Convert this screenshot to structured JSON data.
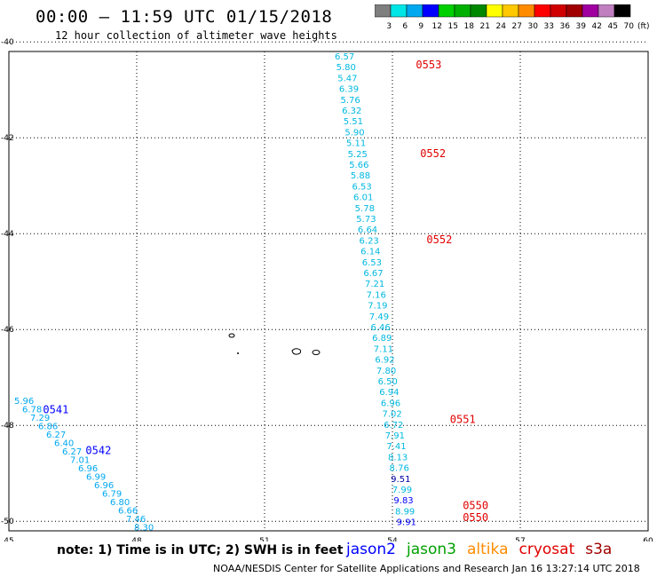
{
  "header": {
    "title": "00:00 – 11:59 UTC 01/15/2018",
    "subtitle": "12 hour collection of altimeter wave heights"
  },
  "colorbar": {
    "unit": "(ft)",
    "labels": [
      "3",
      "6",
      "9",
      "12",
      "15",
      "18",
      "21",
      "24",
      "27",
      "30",
      "33",
      "36",
      "39",
      "42",
      "45",
      "70"
    ],
    "colors": [
      "#7f7f7f",
      "#00e5e5",
      "#00a8f0",
      "#0000ff",
      "#00d000",
      "#00b000",
      "#008800",
      "#ffff00",
      "#ffc800",
      "#ff8c00",
      "#ff0000",
      "#d00000",
      "#a00000",
      "#a000a0",
      "#c080c0",
      "#000000"
    ]
  },
  "map_axes": {
    "lon_ticks": [
      45,
      48,
      51,
      54,
      57,
      60
    ],
    "lat_ticks": [
      -40,
      -42,
      -44,
      -46,
      -48,
      -50
    ],
    "lon_range": [
      45,
      60
    ],
    "lat_range": [
      -40.2,
      -50.2
    ],
    "grid": true
  },
  "tracks": [
    {
      "satellite": "jason2",
      "label_color": "#0000ff",
      "values": [
        "5.96",
        "6.78",
        "7.29",
        "6.86",
        "6.27",
        "6.40",
        "6.27",
        "7.01",
        "6.96",
        "6.99",
        "6.96",
        "6.79",
        "6.80",
        "6.66",
        "7.46",
        "8.30"
      ],
      "value_colors": [
        "#00a8f0"
      ],
      "lon_start": 45.2,
      "lat_start": -47.75,
      "lon_end": 48.4,
      "lat_end": -49.95,
      "times": [
        {
          "label": "0541",
          "lon": 45.8,
          "lat": -47.75
        },
        {
          "label": "0542",
          "lon": 46.8,
          "lat": -48.6
        }
      ]
    },
    {
      "satellite": "cryosat",
      "label_color": "#e00000",
      "values": [
        "6.57",
        "5.80",
        "5.47",
        "6.39",
        "5.76",
        "6.32",
        "5.51",
        "5.90",
        "5.11",
        "5.25",
        "5.66",
        "5.88",
        "6.53",
        "6.01",
        "5.78",
        "5.73",
        "6.64",
        "6.23",
        "6.14",
        "6.53",
        "6.67",
        "7.21",
        "7.16",
        "7.19",
        "7.49",
        "6.46",
        "6.89",
        "7.11",
        "6.92",
        "7.80",
        "6.50",
        "6.94",
        "6.96",
        "7.02",
        "6.72",
        "7.91",
        "7.41",
        "8.13",
        "8.76",
        "9.51",
        "7.99",
        "9.83",
        "8.99",
        "9.91"
      ],
      "value_colors_by_index": {
        "39": "#0000aa",
        "41": "#0000ff",
        "43": "#0000ff"
      },
      "times": [
        {
          "label": "0553",
          "lon": 54.55,
          "lat": -40.55
        },
        {
          "label": "0552",
          "lon": 54.65,
          "lat": -42.4
        },
        {
          "label": "0552",
          "lon": 54.8,
          "lat": -44.2
        },
        {
          "label": "0551",
          "lon": 55.35,
          "lat": -47.95
        },
        {
          "label": "0550",
          "lon": 55.65,
          "lat": -49.75
        },
        {
          "label": "0550",
          "lon": 55.65,
          "lat": -50.0
        }
      ]
    }
  ],
  "note": "note: 1) Time is in UTC; 2) SWH is in feet",
  "legend": [
    {
      "name": "jason2",
      "color": "#0000ff"
    },
    {
      "name": "jason3",
      "color": "#00a000"
    },
    {
      "name": "altika",
      "color": "#ff8c00"
    },
    {
      "name": "cryosat",
      "color": "#e00000"
    },
    {
      "name": "s3a",
      "color": "#a00000"
    }
  ],
  "footer": "NOAA/NESDIS Center for Satellite Applications and Research    Jan 16 13:27:14 UTC 2018"
}
